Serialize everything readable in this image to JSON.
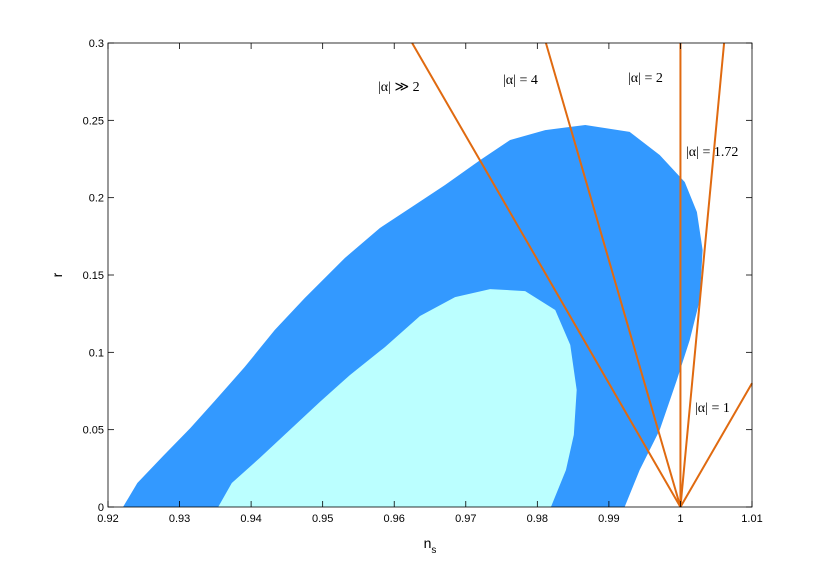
{
  "chart_data": {
    "type": "contour",
    "xlabel": "n",
    "xlabel_subscript": "s",
    "ylabel": "r",
    "xlim": [
      0.92,
      1.01
    ],
    "ylim": [
      0,
      0.3
    ],
    "xticks": [
      0.92,
      0.93,
      0.94,
      0.95,
      0.96,
      0.97,
      0.98,
      0.99,
      1,
      1.01
    ],
    "yticks": [
      0,
      0.05,
      0.1,
      0.15,
      0.2,
      0.25,
      0.3
    ],
    "regions": [
      {
        "color": "#3399ff",
        "x": [
          0.9221,
          0.9241,
          0.9277,
          0.9315,
          0.935,
          0.9391,
          0.9433,
          0.9475,
          0.9531,
          0.958,
          0.9629,
          0.9671,
          0.972,
          0.9762,
          0.9811,
          0.9867,
          0.9929,
          0.9971,
          1.0006,
          1.0023,
          1.0031,
          1.0027,
          1.0013,
          0.9995,
          0.9971,
          0.9943,
          0.9922
        ],
        "y": [
          0,
          0.0155,
          0.033,
          0.051,
          0.069,
          0.0905,
          0.1144,
          0.1351,
          0.161,
          0.1804,
          0.1953,
          0.2082,
          0.2243,
          0.2373,
          0.2437,
          0.247,
          0.2425,
          0.2276,
          0.2101,
          0.1907,
          0.1662,
          0.1338,
          0.108,
          0.0821,
          0.0498,
          0.0239,
          0
        ]
      },
      {
        "color": "#bbffff",
        "x": [
          0.9354,
          0.9373,
          0.9412,
          0.9454,
          0.9496,
          0.9538,
          0.9587,
          0.9636,
          0.9685,
          0.9734,
          0.9783,
          0.9825,
          0.9846,
          0.9855,
          0.9851,
          0.984,
          0.9819
        ],
        "y": [
          0,
          0.0155,
          0.0317,
          0.0498,
          0.0679,
          0.0853,
          0.1034,
          0.1235,
          0.1357,
          0.1409,
          0.1396,
          0.1274,
          0.1048,
          0.0757,
          0.0466,
          0.0239,
          0
        ]
      }
    ],
    "lines": [
      {
        "name": "|α| ≫ 2",
        "color": "#e06a10",
        "x": [
          1,
          0.9625
        ],
        "y": [
          0,
          0.3
        ]
      },
      {
        "name": "|α| = 4",
        "color": "#e06a10",
        "x": [
          1,
          0.9812
        ],
        "y": [
          0,
          0.3
        ]
      },
      {
        "name": "|α| = 2",
        "color": "#e06a10",
        "x": [
          1,
          1
        ],
        "y": [
          0,
          0.3
        ]
      },
      {
        "name": "|α| = 1.72",
        "color": "#e06a10",
        "x": [
          1,
          1.0061
        ],
        "y": [
          0,
          0.3
        ]
      },
      {
        "name": "|α| = 1",
        "color": "#e06a10",
        "x": [
          1,
          1.01
        ],
        "y": [
          0,
          0.08
        ]
      }
    ]
  }
}
